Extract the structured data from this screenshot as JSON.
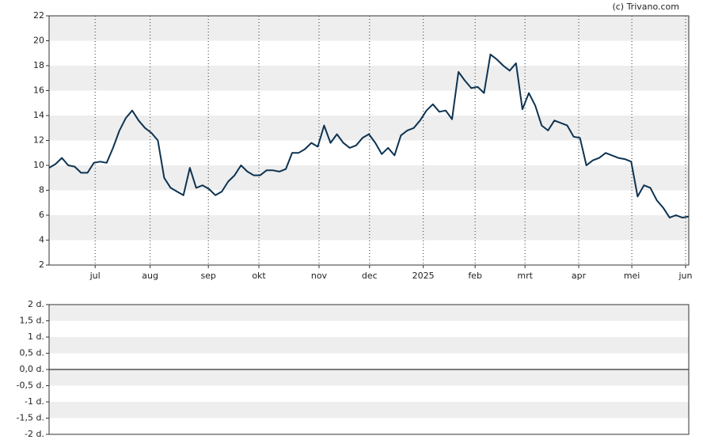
{
  "credit": "(c) Trivano.com",
  "chart_data": [
    {
      "type": "line",
      "color": "#0d3352",
      "grid": true,
      "values": [
        9.8,
        10.1,
        10.6,
        10.0,
        9.9,
        9.4,
        9.4,
        10.2,
        10.3,
        10.2,
        11.4,
        12.8,
        13.8,
        14.4,
        13.6,
        13.0,
        12.6,
        12.0,
        9.0,
        8.2,
        7.9,
        7.6,
        9.8,
        8.2,
        8.4,
        8.1,
        7.6,
        7.9,
        8.7,
        9.2,
        10.0,
        9.5,
        9.2,
        9.2,
        9.6,
        9.6,
        9.5,
        9.7,
        11.0,
        11.0,
        11.3,
        11.8,
        11.5,
        13.2,
        11.8,
        12.5,
        11.8,
        11.4,
        11.6,
        12.2,
        12.5,
        11.8,
        10.9,
        11.4,
        10.8,
        12.4,
        12.8,
        13.0,
        13.6,
        14.4,
        14.9,
        14.3,
        14.4,
        13.7,
        17.5,
        16.8,
        16.2,
        16.3,
        15.8,
        18.9,
        18.5,
        18.0,
        17.6,
        18.2,
        14.5,
        15.8,
        14.8,
        13.2,
        12.8,
        13.6,
        13.4,
        13.2,
        12.3,
        12.2,
        10.0,
        10.4,
        10.6,
        11.0,
        10.8,
        10.6,
        10.5,
        10.3,
        7.5,
        8.4,
        8.2,
        7.2,
        6.6,
        5.8,
        6.0,
        5.8,
        5.9
      ],
      "xlim": [
        0,
        100
      ],
      "xticks": [
        {
          "value": 7.2,
          "label": "jul"
        },
        {
          "value": 15.8,
          "label": "aug"
        },
        {
          "value": 24.9,
          "label": "sep"
        },
        {
          "value": 32.8,
          "label": "okt"
        },
        {
          "value": 42.2,
          "label": "nov"
        },
        {
          "value": 50.1,
          "label": "dec"
        },
        {
          "value": 58.5,
          "label": "2025"
        },
        {
          "value": 66.6,
          "label": "feb"
        },
        {
          "value": 74.4,
          "label": "mrt"
        },
        {
          "value": 82.8,
          "label": "apr"
        },
        {
          "value": 91.1,
          "label": "mei"
        },
        {
          "value": 99.5,
          "label": "jun"
        }
      ],
      "ylim": [
        2,
        22
      ],
      "yticks": [
        2,
        4,
        6,
        8,
        10,
        12,
        14,
        16,
        18,
        20,
        22
      ]
    },
    {
      "type": "line",
      "grid": true,
      "ylim": [
        -2,
        2
      ],
      "yticks": [
        {
          "value": -2,
          "label": "-2 d."
        },
        {
          "value": -1.5,
          "label": "-1,5 d."
        },
        {
          "value": -1,
          "label": "-1 d."
        },
        {
          "value": -0.5,
          "label": "-0,5 d."
        },
        {
          "value": 0,
          "label": "0,0 d."
        },
        {
          "value": 0.5,
          "label": "0,5 d."
        },
        {
          "value": 1,
          "label": "1 d."
        },
        {
          "value": 1.5,
          "label": "1,5 d."
        },
        {
          "value": 2,
          "label": "2 d."
        }
      ]
    }
  ]
}
